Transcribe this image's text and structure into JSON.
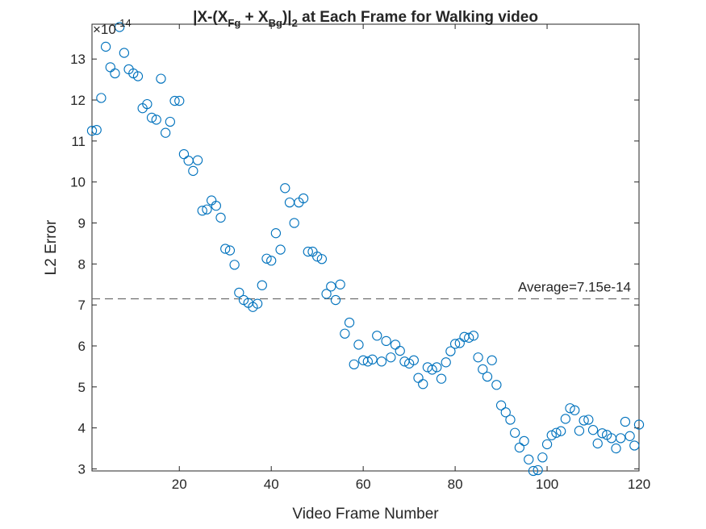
{
  "chart_data": {
    "type": "scatter",
    "title_parts": {
      "a": "|X-(X",
      "b": "Fg",
      "c": " + X",
      "d": "Bg",
      "e": ")|",
      "f": "2",
      "g": " at Each Frame for Walking video"
    },
    "xlabel": "Video Frame Number",
    "ylabel": "L2 Error",
    "exponent_label": "×10",
    "exponent_power": "-14",
    "xlim": [
      1,
      120
    ],
    "ylim": [
      2.95,
      13.85
    ],
    "xticks": [
      20,
      40,
      60,
      80,
      100,
      120
    ],
    "yticks": [
      3,
      4,
      5,
      6,
      7,
      8,
      9,
      10,
      11,
      12,
      13
    ],
    "average_value": 7.15,
    "average_label": "Average=7.15e-14",
    "marker_color": "#0072BD",
    "average_line_color": "#666666",
    "x": [
      1,
      2,
      3,
      4,
      5,
      6,
      7,
      8,
      9,
      10,
      11,
      12,
      13,
      14,
      15,
      16,
      17,
      18,
      19,
      20,
      21,
      22,
      23,
      24,
      25,
      26,
      27,
      28,
      29,
      30,
      31,
      32,
      33,
      34,
      35,
      36,
      37,
      38,
      39,
      40,
      41,
      42,
      43,
      44,
      45,
      46,
      47,
      48,
      49,
      50,
      51,
      52,
      53,
      54,
      55,
      56,
      57,
      58,
      59,
      60,
      61,
      62,
      63,
      64,
      65,
      66,
      67,
      68,
      69,
      70,
      71,
      72,
      73,
      74,
      75,
      76,
      77,
      78,
      79,
      80,
      81,
      82,
      83,
      84,
      85,
      86,
      87,
      88,
      89,
      90,
      91,
      92,
      93,
      94,
      95,
      96,
      97,
      98,
      99,
      100,
      101,
      102,
      103,
      104,
      105,
      106,
      107,
      108,
      109,
      110,
      111,
      112,
      113,
      114,
      115,
      116,
      117,
      118,
      119,
      120
    ],
    "y": [
      11.25,
      11.27,
      12.05,
      13.3,
      12.8,
      12.65,
      13.78,
      13.15,
      12.75,
      12.65,
      12.58,
      11.8,
      11.9,
      11.57,
      11.52,
      12.52,
      11.2,
      11.47,
      11.98,
      11.98,
      10.68,
      10.52,
      10.27,
      10.53,
      9.3,
      9.33,
      9.55,
      9.42,
      9.13,
      8.37,
      8.33,
      7.98,
      7.3,
      7.12,
      7.05,
      6.95,
      7.03,
      7.48,
      8.13,
      8.08,
      8.75,
      8.35,
      9.85,
      9.5,
      9.0,
      9.5,
      9.6,
      8.3,
      8.3,
      8.18,
      8.12,
      7.27,
      7.45,
      7.12,
      7.5,
      6.3,
      6.57,
      5.55,
      6.03,
      5.65,
      5.62,
      5.67,
      6.25,
      5.62,
      6.12,
      5.72,
      6.03,
      5.88,
      5.62,
      5.57,
      5.65,
      5.22,
      5.07,
      5.48,
      5.42,
      5.48,
      5.2,
      5.6,
      5.87,
      6.05,
      6.07,
      6.22,
      6.2,
      6.25,
      5.72,
      5.43,
      5.25,
      5.65,
      5.05,
      4.55,
      4.38,
      4.2,
      3.88,
      3.52,
      3.68,
      3.23,
      2.95,
      2.97,
      3.28,
      3.6,
      3.82,
      3.88,
      3.92,
      4.22,
      4.48,
      4.43,
      3.93,
      4.18,
      4.2,
      3.95,
      3.62,
      3.87,
      3.83,
      3.75,
      3.5,
      3.75,
      4.15,
      3.8,
      3.57,
      4.08
    ]
  }
}
